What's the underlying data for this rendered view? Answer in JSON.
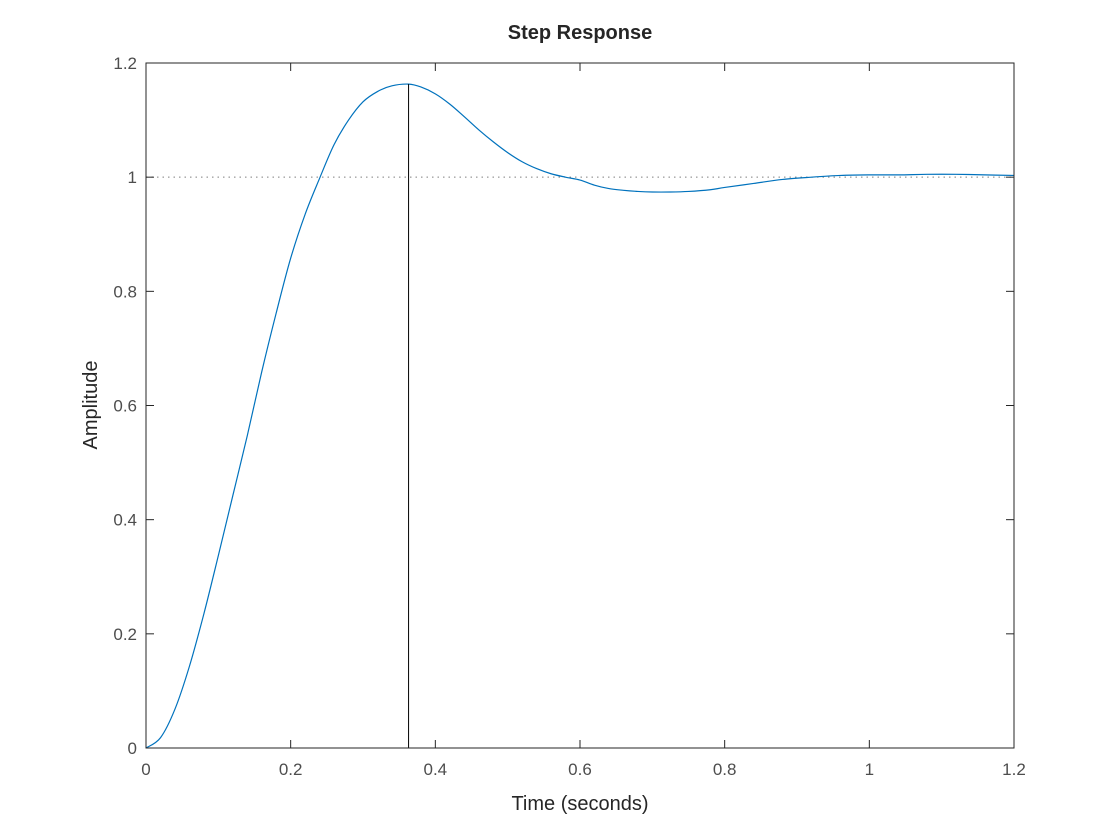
{
  "chart_data": {
    "type": "line",
    "title": "Step Response",
    "xlabel": "Time (seconds)",
    "ylabel": "Amplitude",
    "xlim": [
      0,
      1.2
    ],
    "ylim": [
      0,
      1.2
    ],
    "xticks": [
      0,
      0.2,
      0.4,
      0.6,
      0.8,
      1,
      1.2
    ],
    "yticks": [
      0,
      0.2,
      0.4,
      0.6,
      0.8,
      1,
      1.2
    ],
    "xtick_labels": [
      "0",
      "0.2",
      "0.4",
      "0.6",
      "0.8",
      "1",
      "1.2"
    ],
    "ytick_labels": [
      "0",
      "0.2",
      "0.4",
      "0.6",
      "0.8",
      "1",
      "1.2"
    ],
    "grid": false,
    "reference_line_y": 1,
    "peak_marker_x": 0.363,
    "series": [
      {
        "color": "#0072bd",
        "x": [
          0,
          0.02,
          0.04,
          0.06,
          0.08,
          0.1,
          0.12,
          0.14,
          0.16,
          0.18,
          0.2,
          0.22,
          0.24,
          0.26,
          0.28,
          0.3,
          0.32,
          0.34,
          0.363,
          0.38,
          0.4,
          0.42,
          0.44,
          0.46,
          0.48,
          0.5,
          0.52,
          0.54,
          0.56,
          0.58,
          0.6,
          0.62,
          0.64,
          0.66,
          0.68,
          0.7,
          0.725,
          0.75,
          0.78,
          0.8,
          0.84,
          0.88,
          0.92,
          0.96,
          1.0,
          1.04,
          1.08,
          1.12,
          1.16,
          1.2
        ],
        "y": [
          0,
          0.018,
          0.068,
          0.143,
          0.235,
          0.337,
          0.442,
          0.547,
          0.659,
          0.762,
          0.858,
          0.935,
          0.998,
          1.057,
          1.1,
          1.132,
          1.15,
          1.16,
          1.163,
          1.158,
          1.146,
          1.128,
          1.106,
          1.083,
          1.062,
          1.043,
          1.027,
          1.015,
          1.006,
          1.0,
          0.995,
          0.986,
          0.98,
          0.977,
          0.975,
          0.974,
          0.974,
          0.975,
          0.978,
          0.982,
          0.989,
          0.996,
          1.0,
          1.003,
          1.004,
          1.004,
          1.005,
          1.005,
          1.004,
          1.003
        ]
      }
    ]
  },
  "colors": {
    "axes": "#262626",
    "line": "#0072bd",
    "reference": "#7f7f7f",
    "peak_marker": "#000000"
  }
}
